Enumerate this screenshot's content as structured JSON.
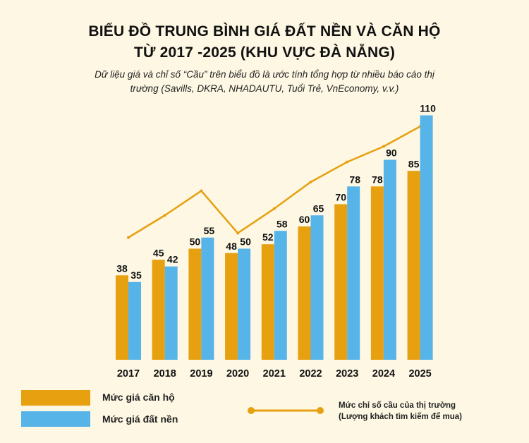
{
  "header": {
    "title_line1": "BIỂU ĐỒ TRUNG BÌNH GIÁ ĐẤT NỀN VÀ CĂN HỘ",
    "title_line2": "TỪ 2017 -2025  (KHU VỰC ĐÀ NẴNG)",
    "subtitle_line1": "Dữ liệu giá và chỉ số “Cầu” trên biểu đồ là ước tính tổng hợp từ nhiều báo cáo thị",
    "subtitle_line2": "trường (Savills, DKRA, NHADAUTU, Tuổi Trẻ, VnEconomy, v.v.)"
  },
  "chart_data": {
    "type": "bar",
    "categories": [
      "2017",
      "2018",
      "2019",
      "2020",
      "2021",
      "2022",
      "2023",
      "2024",
      "2025"
    ],
    "series": [
      {
        "name": "Mức giá căn hộ",
        "type": "bar",
        "color": "#e7a00f",
        "values": [
          38,
          45,
          50,
          48,
          52,
          60,
          70,
          78,
          85
        ]
      },
      {
        "name": "Mức giá đất nền",
        "type": "bar",
        "color": "#56b4e9",
        "values": [
          35,
          42,
          55,
          50,
          58,
          65,
          78,
          90,
          110
        ]
      },
      {
        "name": "Mức chỉ số cầu của thị trường (Lượng khách tìm kiếm để mua)",
        "type": "line",
        "color": "#e7a00f",
        "values": [
          55,
          65,
          76,
          57,
          68,
          80,
          89,
          96,
          105
        ]
      }
    ],
    "ylim": [
      0,
      120
    ],
    "grid": false,
    "legend": "bottom"
  },
  "legend": {
    "apartment_label": "Mức giá căn hộ",
    "land_label": "Mức giá đất nền",
    "demand_line1": "Mức chỉ số cầu của thị trường",
    "demand_line2": "(Lượng khách tìm kiếm để mua)"
  }
}
